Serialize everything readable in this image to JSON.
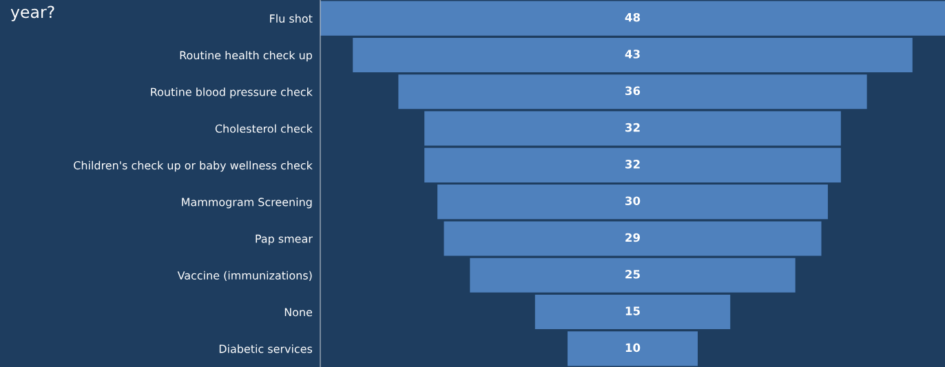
{
  "chart_data": {
    "type": "other",
    "title": "year?",
    "categories": [
      "Flu shot",
      "Routine health check up",
      "Routine blood pressure check",
      "Cholesterol check",
      "Children's check up or baby wellness check",
      "Mammogram Screening",
      "Pap smear",
      "Vaccine (immunizations)",
      "None",
      "Diabetic services"
    ],
    "values": [
      48,
      43,
      36,
      32,
      32,
      30,
      29,
      25,
      15,
      10
    ],
    "color": "#4f81bd",
    "data_labels": true
  }
}
